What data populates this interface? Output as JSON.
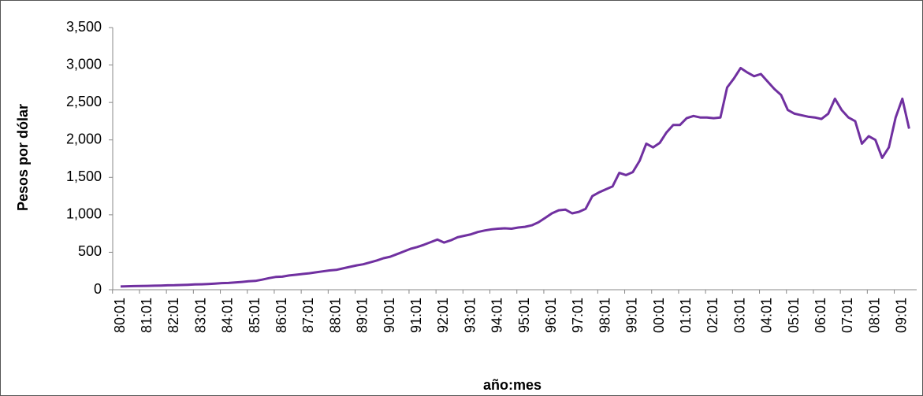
{
  "chart_data": {
    "type": "line",
    "y_label": "Pesos por dólar",
    "x_label": "año:mes",
    "categories": [
      "80:01",
      null,
      null,
      null,
      "81:01",
      null,
      null,
      null,
      "82:01",
      null,
      null,
      null,
      "83:01",
      null,
      null,
      null,
      "84:01",
      null,
      null,
      null,
      "85:01",
      null,
      null,
      null,
      "86:01",
      null,
      null,
      null,
      "87:01",
      null,
      null,
      null,
      "88:01",
      null,
      null,
      null,
      "89:01",
      null,
      null,
      null,
      "90:01",
      null,
      null,
      null,
      "91:01",
      null,
      null,
      null,
      "92:01",
      null,
      null,
      null,
      "93:01",
      null,
      null,
      null,
      "94:01",
      null,
      null,
      null,
      "95:01",
      null,
      null,
      null,
      "96:01",
      null,
      null,
      null,
      "97:01",
      null,
      null,
      null,
      "98:01",
      null,
      null,
      null,
      "99:01",
      null,
      null,
      null,
      "00:01",
      null,
      null,
      null,
      "01:01",
      null,
      null,
      null,
      "02:01",
      null,
      null,
      null,
      "03:01",
      null,
      null,
      null,
      "04:01",
      null,
      null,
      null,
      "05:01",
      null,
      null,
      null,
      "06:01",
      null,
      null,
      null,
      "07:01",
      null,
      null,
      null,
      "08:01",
      null,
      null,
      null,
      "09:01",
      null
    ],
    "values": [
      43,
      46,
      48,
      50,
      51,
      54,
      56,
      59,
      60,
      63,
      66,
      70,
      72,
      77,
      82,
      88,
      90,
      97,
      104,
      112,
      118,
      135,
      155,
      170,
      175,
      190,
      200,
      210,
      220,
      232,
      245,
      258,
      265,
      285,
      305,
      325,
      340,
      365,
      390,
      420,
      440,
      475,
      510,
      545,
      570,
      600,
      635,
      670,
      630,
      660,
      700,
      720,
      740,
      770,
      790,
      805,
      815,
      820,
      815,
      830,
      840,
      860,
      900,
      960,
      1020,
      1060,
      1070,
      1020,
      1040,
      1080,
      1250,
      1300,
      1340,
      1380,
      1560,
      1530,
      1570,
      1720,
      1950,
      1900,
      1960,
      2100,
      2200,
      2200,
      2290,
      2320,
      2300,
      2300,
      2290,
      2300,
      2700,
      2820,
      2960,
      2900,
      2850,
      2880,
      2780,
      2680,
      2600,
      2400,
      2350,
      2330,
      2310,
      2300,
      2280,
      2350,
      2550,
      2400,
      2300,
      2250,
      1950,
      2050,
      2000,
      1760,
      1900,
      2300,
      2550,
      2150
    ],
    "color": "#7030a0",
    "ylim": [
      0,
      3500
    ],
    "yticks": [
      0,
      500,
      {
        "value": 1000,
        "label": "1,000"
      },
      {
        "value": 1500,
        "label": "1,500"
      },
      {
        "value": 2000,
        "label": "2,000"
      },
      {
        "value": 2500,
        "label": "2,500"
      },
      {
        "value": 3000,
        "label": "3,000"
      },
      {
        "value": 3500,
        "label": "3,500"
      }
    ],
    "grid": false
  }
}
